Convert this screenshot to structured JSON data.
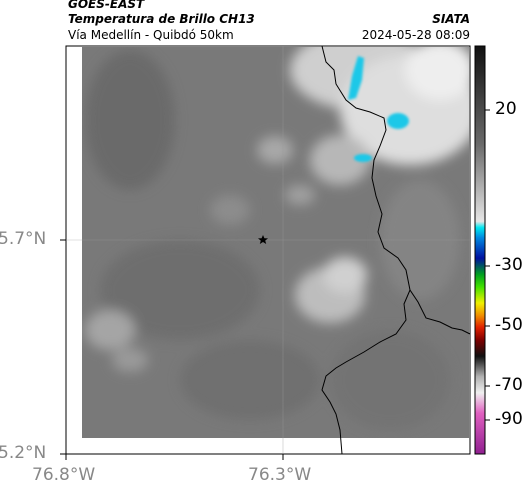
{
  "header": {
    "satellite": "GOES-EAST",
    "product": "Temperatura de Brillo CH13",
    "location": "Vía Medellín - Quibdó 50km",
    "agency": "SIATA",
    "datetime": "2024-05-28 08:09"
  },
  "axes": {
    "lat_ticks": [
      "5.7°N",
      "5.2°N"
    ],
    "lon_ticks": [
      "76.8°W",
      "76.3°W"
    ]
  },
  "colorbar": {
    "labels": [
      "20",
      "-30",
      "-50",
      "-70",
      "-90"
    ]
  },
  "marker": {
    "name": "star-marker-icon"
  },
  "colors": {
    "cold_cloud": "#1ec8e8",
    "boundary": "#000000",
    "background_cloud": "#7a7a7a"
  }
}
